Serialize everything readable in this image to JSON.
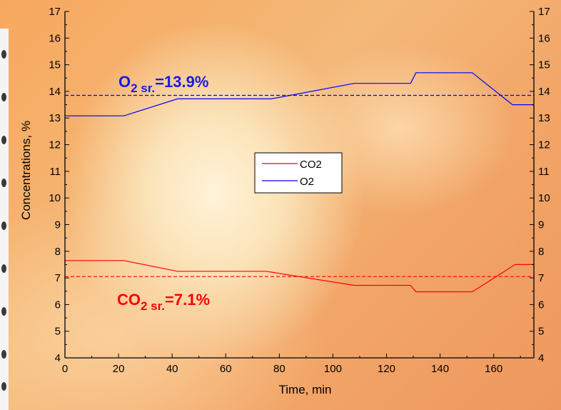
{
  "chart_data": {
    "type": "line",
    "xlabel": "Time, min",
    "ylabel": "Concentrations, %",
    "xlim": [
      0,
      175
    ],
    "ylim": [
      4,
      17
    ],
    "xticks": [
      0,
      20,
      40,
      60,
      80,
      100,
      120,
      140,
      160
    ],
    "yticks": [
      4,
      5,
      6,
      7,
      8,
      9,
      10,
      11,
      12,
      13,
      14,
      15,
      16,
      17
    ],
    "legend_position": "center",
    "series": [
      {
        "name": "CO2",
        "color": "#ff0000",
        "x": [
          0,
          22,
          42,
          75,
          108,
          129,
          131,
          152,
          168,
          175
        ],
        "y": [
          7.65,
          7.65,
          7.25,
          7.25,
          6.72,
          6.72,
          6.48,
          6.48,
          7.5,
          7.5
        ]
      },
      {
        "name": "O2",
        "color": "#0000ff",
        "x": [
          0,
          22,
          42,
          77,
          108,
          129,
          131,
          152,
          167,
          175
        ],
        "y": [
          13.08,
          13.08,
          13.72,
          13.72,
          14.3,
          14.3,
          14.7,
          14.7,
          13.5,
          13.5
        ]
      }
    ],
    "reference_lines": [
      {
        "y": 13.85,
        "color": "#0000ff",
        "style": "dashed"
      },
      {
        "y": 7.05,
        "color": "#ff0000",
        "style": "dashed"
      }
    ],
    "annotations": [
      {
        "main": "O",
        "sub": "2 sr.",
        "rest": "=13.9%",
        "color": "#1a1ae6"
      },
      {
        "main": "CO",
        "sub": "2 sr.",
        "rest": "=7.1%",
        "color": "#ff0000"
      }
    ]
  }
}
